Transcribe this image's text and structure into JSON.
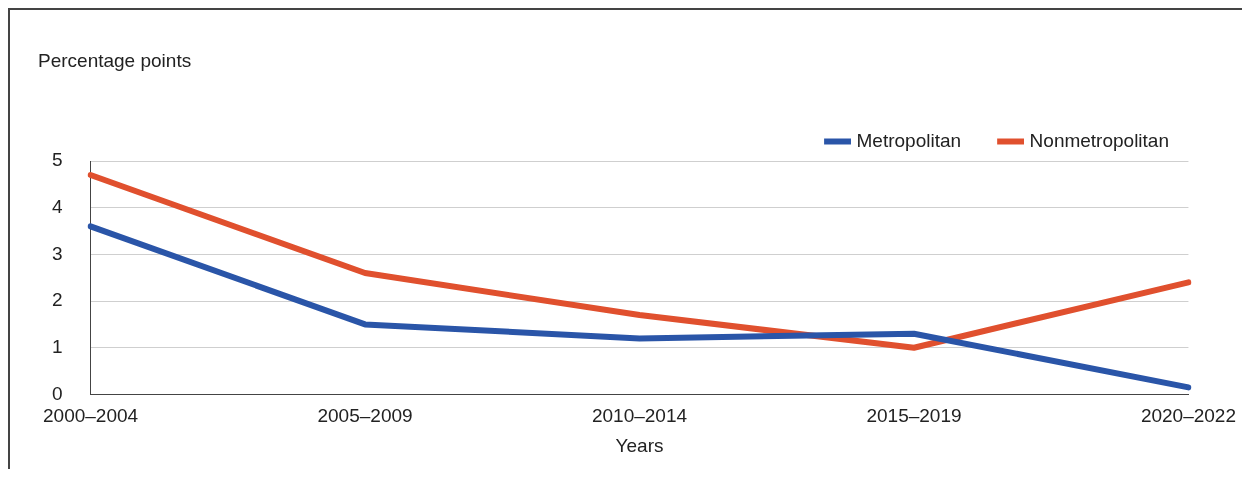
{
  "chart_data": {
    "type": "line",
    "xlabel": "Years",
    "ylabel": "Percentage points",
    "categories": [
      "2000–2004",
      "2005–2009",
      "2010–2014",
      "2015–2019",
      "2020–2022"
    ],
    "series": [
      {
        "name": "Metropolitan",
        "color": "#2a55a8",
        "values": [
          3.6,
          1.5,
          1.2,
          1.3,
          0.15
        ]
      },
      {
        "name": "Nonmetropolitan",
        "color": "#e0502e",
        "values": [
          4.7,
          2.6,
          1.7,
          1.0,
          2.4
        ]
      }
    ],
    "ylim": [
      0,
      5
    ],
    "yticks": [
      0,
      1,
      2,
      3,
      4,
      5
    ],
    "grid": "y",
    "legend": "top right",
    "marker": "none",
    "line_style": "solid"
  }
}
